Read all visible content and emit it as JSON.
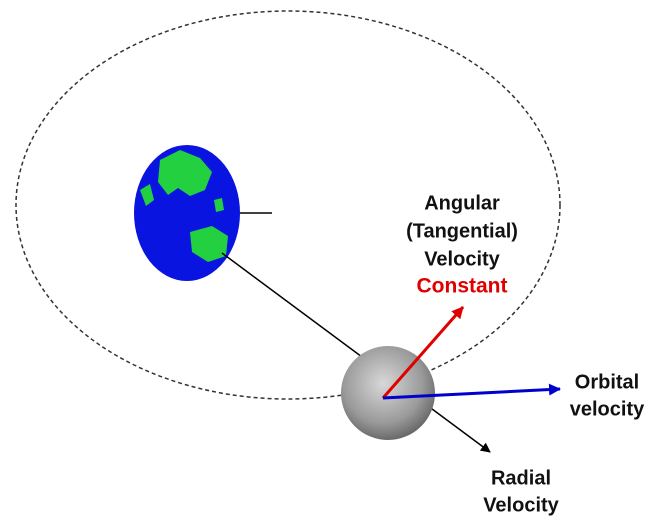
{
  "labels": {
    "angular_velocity": {
      "lines": [
        "Angular",
        "(Tangential)",
        "Velocity"
      ],
      "note": "Constant"
    },
    "orbital_velocity": {
      "lines": [
        "Orbital",
        "velocity"
      ]
    },
    "radial_velocity": {
      "lines": [
        "Radial",
        "Velocity"
      ]
    }
  }
}
